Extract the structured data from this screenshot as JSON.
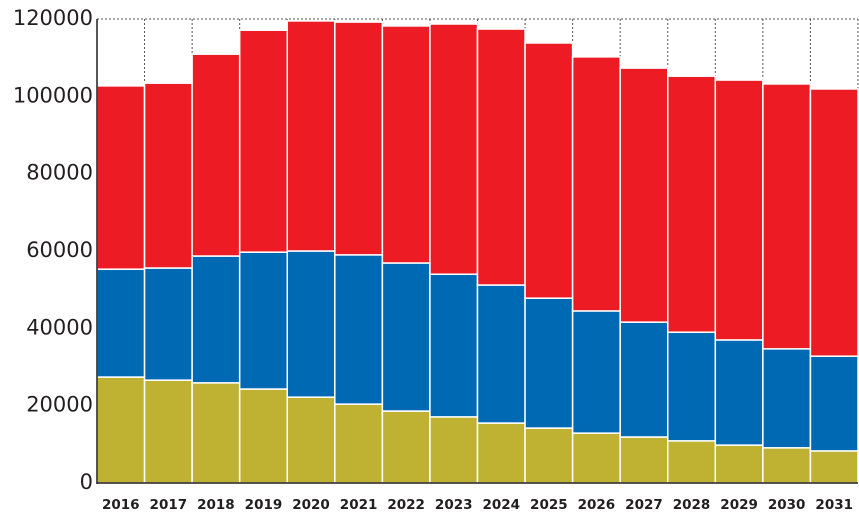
{
  "chart_data": {
    "type": "stacked_bar",
    "categories": [
      "2016",
      "2017",
      "2018",
      "2019",
      "2020",
      "2021",
      "2022",
      "2023",
      "2024",
      "2025",
      "2026",
      "2027",
      "2028",
      "2029",
      "2030",
      "2031"
    ],
    "series": [
      {
        "color": "#bfb232",
        "values": [
          27400,
          26600,
          25900,
          24300,
          22200,
          20400,
          18600,
          17100,
          15500,
          14200,
          12900,
          11900,
          10900,
          9800,
          9100,
          8300
        ]
      },
      {
        "color": "#0069b4",
        "values": [
          27900,
          29000,
          32800,
          35400,
          37800,
          38600,
          38300,
          36900,
          35700,
          33600,
          31600,
          29700,
          28100,
          27200,
          25600,
          24500
        ]
      },
      {
        "color": "#ed1c24",
        "values": [
          47400,
          47800,
          52200,
          57400,
          59500,
          60200,
          61300,
          64700,
          66200,
          66000,
          65700,
          65700,
          66200,
          67200,
          68500,
          69100
        ]
      }
    ],
    "ylim": [
      0,
      120000
    ],
    "yticks": [
      0,
      20000,
      40000,
      60000,
      80000,
      100000,
      120000
    ]
  }
}
